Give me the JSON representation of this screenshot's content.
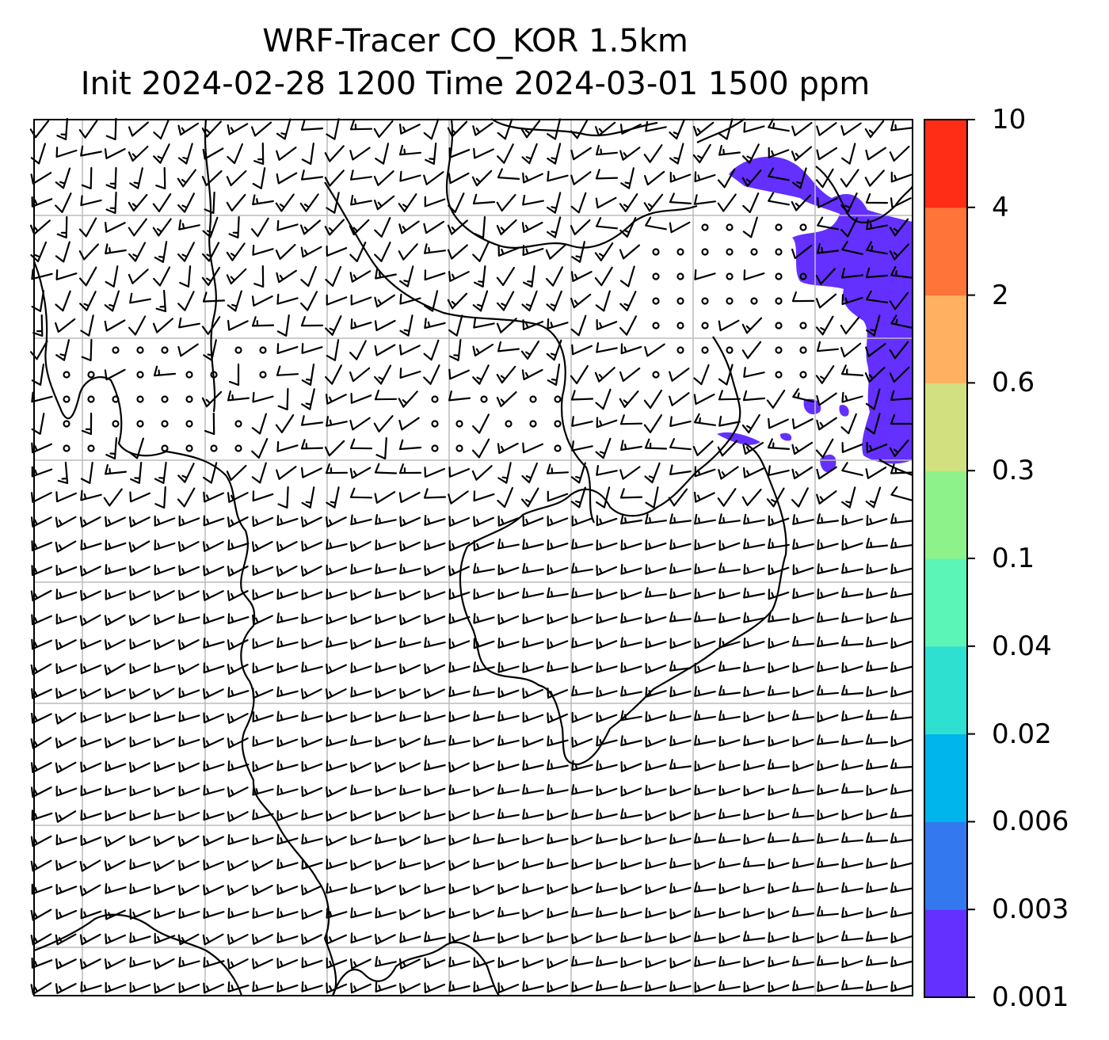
{
  "title": {
    "line1": "WRF-Tracer CO_KOR 1.5km",
    "line2": "Init 2024-02-28 1200 Time 2024-03-01 1500 ppm"
  },
  "colorbar": {
    "levels": [
      "0.001",
      "0.003",
      "0.006",
      "0.02",
      "0.04",
      "0.1",
      "0.3",
      "0.6",
      "2",
      "4",
      "10"
    ],
    "colors": [
      "#6430ff",
      "#3478f0",
      "#00b4ec",
      "#2ee0d0",
      "#5cf5b8",
      "#8ef28a",
      "#d2e080",
      "#ffb060",
      "#ff7438",
      "#ff2c16"
    ]
  },
  "map": {
    "field": "CO tracer concentration",
    "units": "ppm",
    "overlays": [
      "wind-barbs",
      "coastlines",
      "lat-lon-gridlines"
    ],
    "colors": {
      "plume": "#6430ff",
      "coast": "#000000",
      "grid": "#bbbbbb"
    }
  }
}
